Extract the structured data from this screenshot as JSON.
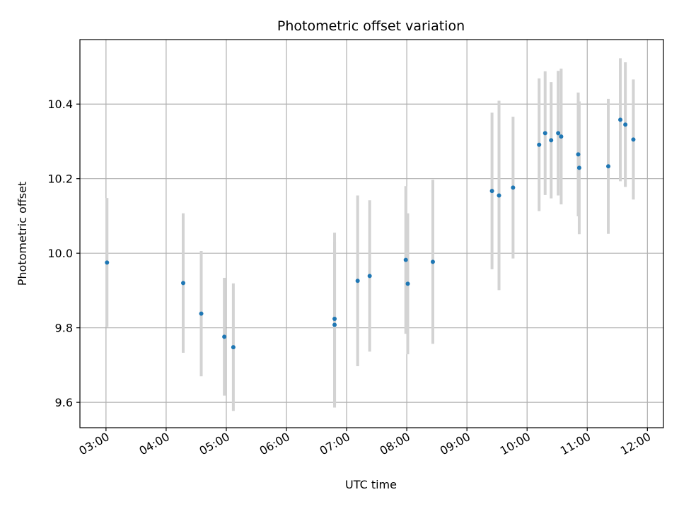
{
  "chart_data": {
    "type": "scatter",
    "title": "Photometric offset variation",
    "xlabel": "UTC time",
    "ylabel": "Photometric offset",
    "x_unit": "UTC time (HH:MM)",
    "xlim": [
      "02:34",
      "12:16"
    ],
    "ylim": [
      9.532,
      10.573
    ],
    "x_ticks": [
      "03:00",
      "04:00",
      "05:00",
      "06:00",
      "07:00",
      "08:00",
      "09:00",
      "10:00",
      "11:00",
      "12:00"
    ],
    "y_ticks": [
      9.6,
      9.8,
      10.0,
      10.2,
      10.4
    ],
    "y_tick_labels": [
      "9.6",
      "9.8",
      "10.0",
      "10.2",
      "10.4"
    ],
    "grid": true,
    "point_color": "#1f77b4",
    "errorbar_color": "#d3d3d3",
    "series": [
      {
        "points": [
          {
            "x": "03:01",
            "y": 9.975,
            "yerr": 0.173
          },
          {
            "x": "04:17",
            "y": 9.92,
            "yerr": 0.187
          },
          {
            "x": "04:35",
            "y": 9.838,
            "yerr": 0.168
          },
          {
            "x": "04:58",
            "y": 9.776,
            "yerr": 0.158
          },
          {
            "x": "05:07",
            "y": 9.748,
            "yerr": 0.171
          },
          {
            "x": "06:48",
            "y": 9.808,
            "yerr": 0.222
          },
          {
            "x": "06:48",
            "y": 9.824,
            "yerr": 0.231
          },
          {
            "x": "07:11",
            "y": 9.926,
            "yerr": 0.229
          },
          {
            "x": "07:23",
            "y": 9.939,
            "yerr": 0.203
          },
          {
            "x": "07:59",
            "y": 9.982,
            "yerr": 0.198
          },
          {
            "x": "08:01",
            "y": 9.918,
            "yerr": 0.189
          },
          {
            "x": "08:26",
            "y": 9.977,
            "yerr": 0.22
          },
          {
            "x": "09:25",
            "y": 10.167,
            "yerr": 0.21
          },
          {
            "x": "09:32",
            "y": 10.155,
            "yerr": 0.254
          },
          {
            "x": "09:46",
            "y": 10.176,
            "yerr": 0.19
          },
          {
            "x": "10:12",
            "y": 10.291,
            "yerr": 0.178
          },
          {
            "x": "10:18",
            "y": 10.322,
            "yerr": 0.166
          },
          {
            "x": "10:24",
            "y": 10.303,
            "yerr": 0.156
          },
          {
            "x": "10:31",
            "y": 10.322,
            "yerr": 0.167
          },
          {
            "x": "10:34",
            "y": 10.313,
            "yerr": 0.182
          },
          {
            "x": "10:51",
            "y": 10.265,
            "yerr": 0.166
          },
          {
            "x": "10:52",
            "y": 10.229,
            "yerr": 0.178
          },
          {
            "x": "11:21",
            "y": 10.233,
            "yerr": 0.181
          },
          {
            "x": "11:33",
            "y": 10.358,
            "yerr": 0.165
          },
          {
            "x": "11:38",
            "y": 10.345,
            "yerr": 0.167
          },
          {
            "x": "11:46",
            "y": 10.305,
            "yerr": 0.161
          }
        ]
      }
    ]
  }
}
